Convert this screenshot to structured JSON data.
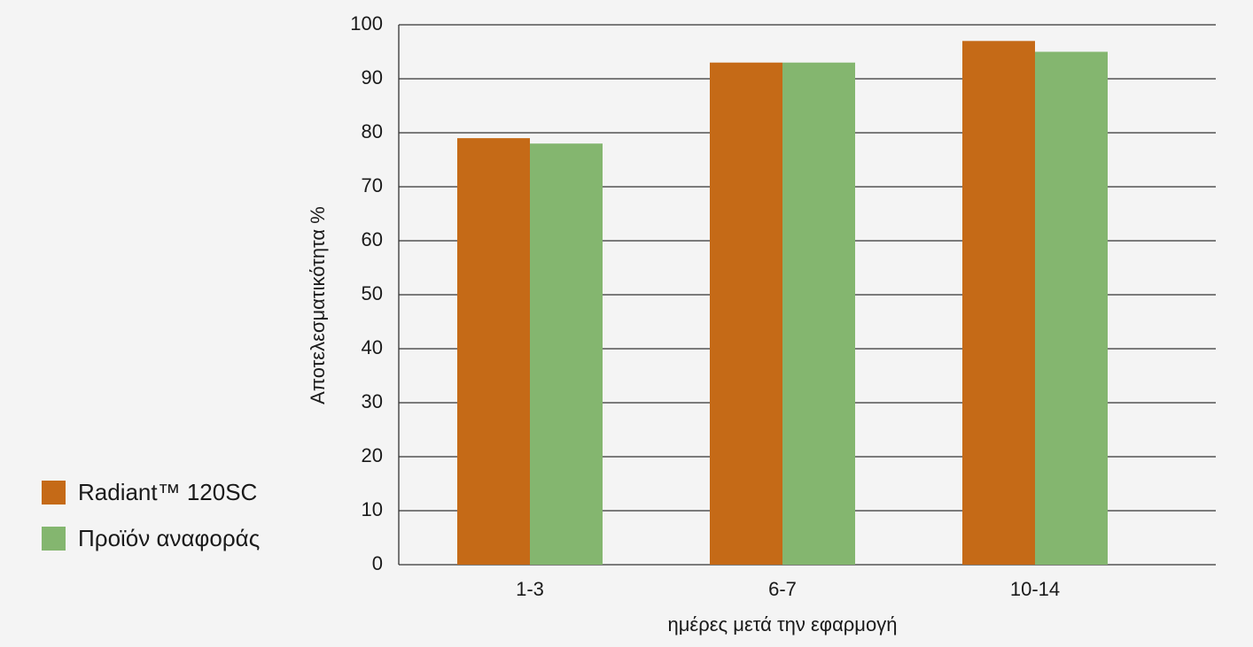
{
  "chart_data": {
    "type": "bar",
    "y_label": "Αποτελεσματικότητα %",
    "x_label": "ημέρες μετά την εφαρμογή",
    "categories": [
      "1-3",
      "6-7",
      "10-14"
    ],
    "series": [
      {
        "name": "Radiant™ 120SC",
        "color": "#c56a17",
        "values": [
          79,
          93,
          97
        ]
      },
      {
        "name": "Προϊόν αναφοράς",
        "color": "#84b66f",
        "values": [
          78,
          93,
          95
        ]
      }
    ],
    "ylim": [
      0,
      100
    ],
    "yticks": [
      0,
      10,
      20,
      30,
      40,
      50,
      60,
      70,
      80,
      90,
      100
    ],
    "grid": true,
    "legend": "left"
  }
}
